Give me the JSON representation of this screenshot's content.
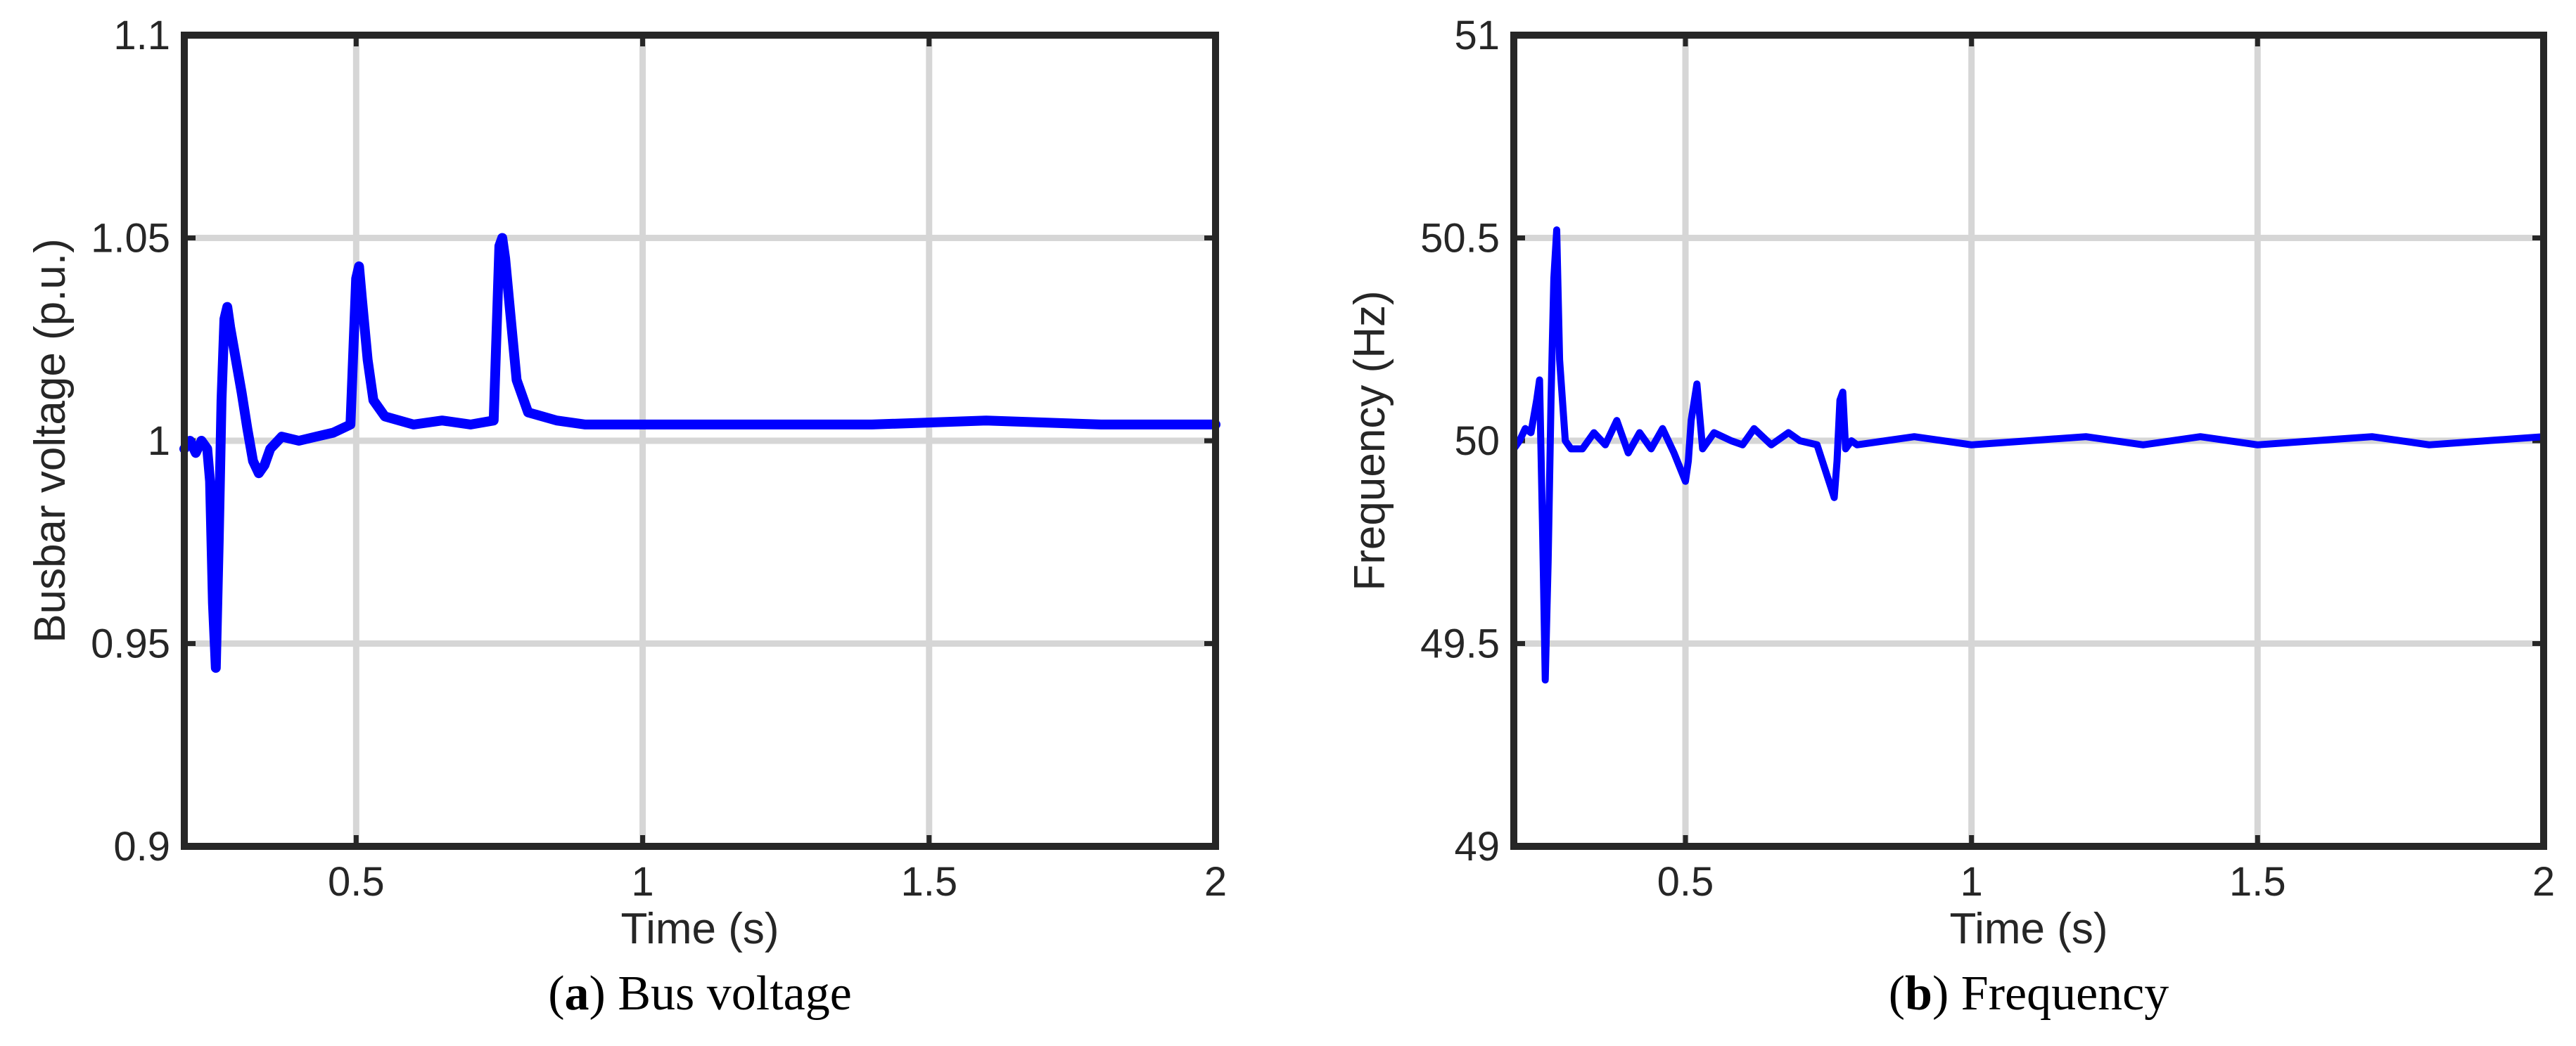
{
  "chart_data": [
    {
      "type": "line",
      "caption_letter": "a",
      "caption_text": "Bus voltage",
      "xlabel": "Time (s)",
      "ylabel": "Busbar voltage (p.u.)",
      "xlim": [
        0.2,
        2.0
      ],
      "ylim": [
        0.9,
        1.1
      ],
      "xticks": [
        0.5,
        1,
        1.5,
        2
      ],
      "xtick_labels": [
        "0.5",
        "1",
        "1.5",
        "2"
      ],
      "yticks": [
        0.9,
        0.95,
        1,
        1.05,
        1.1
      ],
      "ytick_labels": [
        "0.9",
        "0.95",
        "1",
        "1.05",
        "1.1"
      ],
      "grid": true,
      "color": "#0000ff",
      "series": [
        {
          "x": [
            0.2,
            0.21,
            0.22,
            0.23,
            0.24,
            0.245,
            0.25,
            0.255,
            0.26,
            0.265,
            0.27,
            0.275,
            0.28,
            0.29,
            0.3,
            0.31,
            0.32,
            0.33,
            0.34,
            0.35,
            0.37,
            0.4,
            0.43,
            0.46,
            0.49,
            0.5,
            0.505,
            0.51,
            0.52,
            0.53,
            0.55,
            0.6,
            0.65,
            0.7,
            0.74,
            0.75,
            0.755,
            0.76,
            0.77,
            0.78,
            0.8,
            0.85,
            0.9,
            1.0,
            1.2,
            1.4,
            1.6,
            1.8,
            2.0
          ],
          "y": [
            0.998,
            1.0,
            0.997,
            1.0,
            0.998,
            0.99,
            0.96,
            0.944,
            0.975,
            1.01,
            1.03,
            1.033,
            1.028,
            1.02,
            1.012,
            1.003,
            0.995,
            0.992,
            0.994,
            0.998,
            1.001,
            1.0,
            1.001,
            1.002,
            1.004,
            1.04,
            1.043,
            1.035,
            1.02,
            1.01,
            1.006,
            1.004,
            1.005,
            1.004,
            1.005,
            1.048,
            1.05,
            1.045,
            1.03,
            1.015,
            1.007,
            1.005,
            1.004,
            1.004,
            1.004,
            1.004,
            1.005,
            1.004,
            1.004
          ]
        }
      ]
    },
    {
      "type": "line",
      "caption_letter": "b",
      "caption_text": "Frequency",
      "xlabel": "Time (s)",
      "ylabel": "Frequency (Hz)",
      "xlim": [
        0.2,
        2.0
      ],
      "ylim": [
        49,
        51
      ],
      "xticks": [
        0.5,
        1,
        1.5,
        2
      ],
      "xtick_labels": [
        "0.5",
        "1",
        "1.5",
        "2"
      ],
      "yticks": [
        49,
        49.5,
        50,
        50.5,
        51
      ],
      "ytick_labels": [
        "49",
        "49.5",
        "50",
        "50.5",
        "51"
      ],
      "grid": true,
      "color": "#0000ff",
      "series": [
        {
          "x": [
            0.2,
            0.21,
            0.22,
            0.23,
            0.24,
            0.245,
            0.25,
            0.255,
            0.26,
            0.265,
            0.27,
            0.275,
            0.28,
            0.29,
            0.3,
            0.32,
            0.34,
            0.36,
            0.38,
            0.4,
            0.42,
            0.44,
            0.46,
            0.48,
            0.5,
            0.505,
            0.51,
            0.52,
            0.53,
            0.55,
            0.58,
            0.6,
            0.62,
            0.65,
            0.68,
            0.7,
            0.73,
            0.76,
            0.765,
            0.77,
            0.775,
            0.78,
            0.79,
            0.8,
            0.85,
            0.9,
            1.0,
            1.1,
            1.2,
            1.3,
            1.4,
            1.5,
            1.6,
            1.7,
            1.8,
            1.9,
            2.0
          ],
          "y": [
            49.98,
            50.0,
            50.03,
            50.02,
            50.1,
            50.15,
            49.8,
            49.41,
            49.7,
            50.1,
            50.4,
            50.52,
            50.2,
            50.0,
            49.98,
            49.98,
            50.02,
            49.99,
            50.05,
            49.97,
            50.02,
            49.98,
            50.03,
            49.97,
            49.9,
            49.95,
            50.05,
            50.14,
            49.98,
            50.02,
            50.0,
            49.99,
            50.03,
            49.99,
            50.02,
            50.0,
            49.99,
            49.86,
            49.95,
            50.1,
            50.12,
            49.98,
            50.0,
            49.99,
            50.0,
            50.01,
            49.99,
            50.0,
            50.01,
            49.99,
            50.01,
            49.99,
            50.0,
            50.01,
            49.99,
            50.0,
            50.01
          ]
        }
      ]
    }
  ]
}
